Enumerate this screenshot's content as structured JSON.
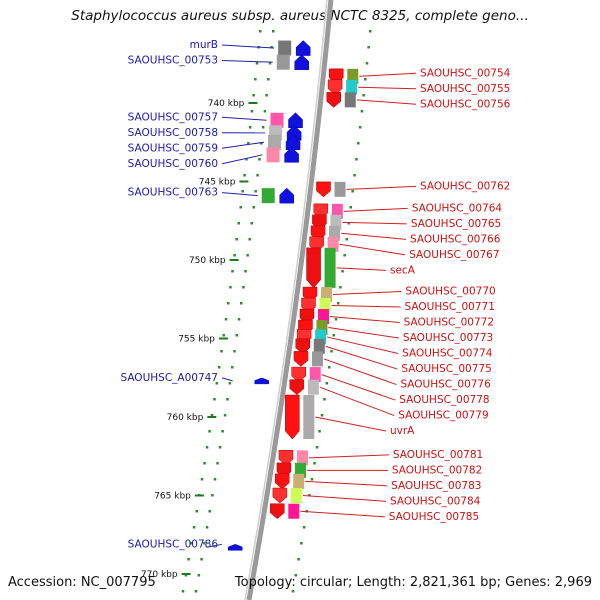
{
  "title": "Staphylococcus aureus subsp. aureus NCTC 8325, complete geno...",
  "footer": {
    "accession": "Accession: NC_007795",
    "summary": "Topology: circular; Length: 2,821,361 bp; Genes: 2,969"
  },
  "colors": {
    "reverse_label": "#1a1aaa",
    "forward_label": "#cc1111",
    "backbone": "#8a8a8a",
    "tick": "#1f7a1f"
  },
  "scale": {
    "unit": "kbp",
    "ticks_kbp": [
      740,
      745,
      750,
      755,
      760,
      765,
      770
    ]
  },
  "reverse_strand_labels": [
    {
      "name": "murB",
      "gene_kbp": 736.5
    },
    {
      "name": "SAOUHSC_00753",
      "gene_kbp": 737.4
    },
    {
      "name": "SAOUHSC_00757",
      "gene_kbp": 741.1
    },
    {
      "name": "SAOUHSC_00758",
      "gene_kbp": 741.9
    },
    {
      "name": "SAOUHSC_00759",
      "gene_kbp": 742.5
    },
    {
      "name": "SAOUHSC_00760",
      "gene_kbp": 743.3
    },
    {
      "name": "SAOUHSC_00763",
      "gene_kbp": 745.9
    },
    {
      "name": "SAOUHSC_A00747",
      "gene_kbp": 757.7
    },
    {
      "name": "SAOUHSC_00786",
      "gene_kbp": 768.3
    }
  ],
  "forward_strand_labels": [
    {
      "name": "SAOUHSC_00754",
      "gene_kbp": 738.3
    },
    {
      "name": "SAOUHSC_00755",
      "gene_kbp": 739.0
    },
    {
      "name": "SAOUHSC_00756",
      "gene_kbp": 739.8
    },
    {
      "name": "SAOUHSC_00762",
      "gene_kbp": 745.5
    },
    {
      "name": "SAOUHSC_00764",
      "gene_kbp": 746.9
    },
    {
      "name": "SAOUHSC_00765",
      "gene_kbp": 747.6
    },
    {
      "name": "SAOUHSC_00766",
      "gene_kbp": 748.3
    },
    {
      "name": "SAOUHSC_00767",
      "gene_kbp": 749.0
    },
    {
      "name": "secA",
      "gene_kbp": 750.5
    },
    {
      "name": "SAOUHSC_00770",
      "gene_kbp": 752.2
    },
    {
      "name": "SAOUHSC_00771",
      "gene_kbp": 752.9
    },
    {
      "name": "SAOUHSC_00772",
      "gene_kbp": 753.6
    },
    {
      "name": "SAOUHSC_00773",
      "gene_kbp": 754.3
    },
    {
      "name": "SAOUHSC_00774",
      "gene_kbp": 754.9
    },
    {
      "name": "SAOUHSC_00775",
      "gene_kbp": 755.5
    },
    {
      "name": "SAOUHSC_00776",
      "gene_kbp": 756.3
    },
    {
      "name": "SAOUHSC_00778",
      "gene_kbp": 757.3
    },
    {
      "name": "SAOUHSC_00779",
      "gene_kbp": 758.1
    },
    {
      "name": "uvrA",
      "gene_kbp": 760.0
    },
    {
      "name": "SAOUHSC_00781",
      "gene_kbp": 762.6
    },
    {
      "name": "SAOUHSC_00782",
      "gene_kbp": 763.4
    },
    {
      "name": "SAOUHSC_00783",
      "gene_kbp": 764.1
    },
    {
      "name": "SAOUHSC_00784",
      "gene_kbp": 765.0
    },
    {
      "name": "SAOUHSC_00785",
      "gene_kbp": 766.0
    }
  ]
}
